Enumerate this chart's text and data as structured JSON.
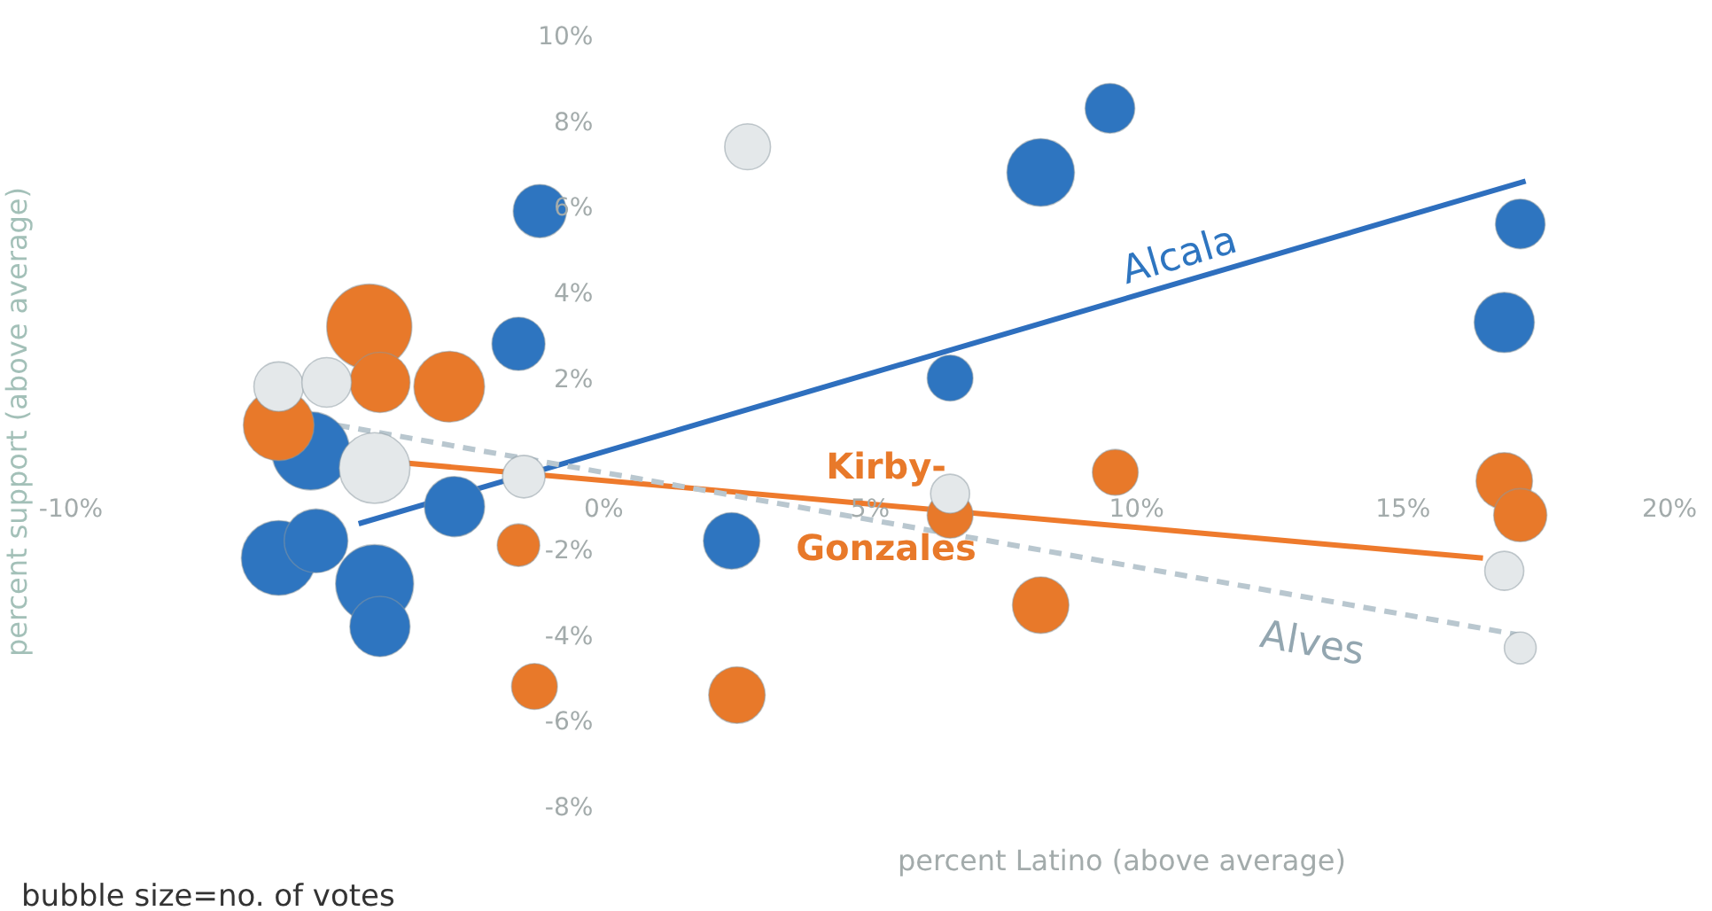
{
  "chart_data": {
    "type": "bubble",
    "xlabel": "percent Latino (above average)",
    "ylabel": "percent support (above average)",
    "xlim": [
      -10,
      20
    ],
    "xticks": [
      {
        "value": -10,
        "label": "-10%"
      },
      {
        "value": 0,
        "label": "0%"
      },
      {
        "value": 5,
        "label": "5%"
      },
      {
        "value": 10,
        "label": "10%"
      },
      {
        "value": 15,
        "label": "15%"
      },
      {
        "value": 20,
        "label": "20%"
      }
    ],
    "ylim": [
      -8,
      10
    ],
    "yticks": [
      {
        "value": -8,
        "label": "-8%"
      },
      {
        "value": -6,
        "label": "-6%"
      },
      {
        "value": -4,
        "label": "-4%"
      },
      {
        "value": -2,
        "label": "-2%"
      },
      {
        "value": 2,
        "label": "2%"
      },
      {
        "value": 4,
        "label": "4%"
      },
      {
        "value": 6,
        "label": "6%"
      },
      {
        "value": 8,
        "label": "8%"
      },
      {
        "value": 10,
        "label": "10%"
      }
    ],
    "grid": false,
    "legend": false,
    "marker": "circle",
    "series": [
      {
        "type": "bubble",
        "color": "#2e75c0",
        "x": [
          9.5,
          8.2,
          -1.2,
          -1.6,
          6.5,
          17.2,
          16.9,
          -5.5,
          -2.8,
          -6.1,
          -5.4,
          -4.3,
          -4.2,
          2.4
        ],
        "values": [
          8.3,
          6.8,
          5.9,
          2.8,
          2.0,
          5.6,
          3.3,
          0.3,
          -1.0,
          -2.2,
          -1.8,
          -2.8,
          -3.8,
          -1.8
        ],
        "sizes": [
          0.34,
          0.63,
          0.39,
          0.39,
          0.29,
          0.34,
          0.5,
          0.84,
          0.5,
          0.77,
          0.56,
          0.84,
          0.5,
          0.44
        ]
      },
      {
        "type": "bubble",
        "color": "#e8792a",
        "x": [
          -4.4,
          -2.9,
          -4.2,
          -6.1,
          -1.6,
          9.6,
          6.5,
          8.2,
          -1.3,
          2.5,
          16.9,
          17.2
        ],
        "values": [
          3.2,
          1.8,
          1.9,
          0.9,
          -1.9,
          -0.2,
          -1.2,
          -3.3,
          -5.2,
          -5.4,
          -0.4,
          -1.2
        ],
        "sizes": [
          1,
          0.69,
          0.5,
          0.69,
          0.25,
          0.29,
          0.29,
          0.44,
          0.29,
          0.44,
          0.44,
          0.39
        ]
      },
      {
        "type": "bubble",
        "color": "#e4e8ea",
        "x": [
          2.7,
          -6.1,
          -5.2,
          -4.3,
          -1.5,
          6.5,
          16.9,
          17.2
        ],
        "values": [
          7.4,
          1.8,
          1.9,
          -0.1,
          -0.3,
          -0.7,
          -2.5,
          -4.3
        ],
        "sizes": [
          0.29,
          0.34,
          0.34,
          0.69,
          0.25,
          0.21,
          0.21,
          0.14
        ]
      },
      {
        "type": "line",
        "color": "#2e6fbe",
        "x": [
          -4.6,
          17.3
        ],
        "values": [
          -1.4,
          6.6
        ],
        "line_style": "solid",
        "marker": "none"
      },
      {
        "type": "line",
        "color": "#ee7a2c",
        "x": [
          -6.3,
          16.5
        ],
        "values": [
          0.3,
          -2.2
        ],
        "line_style": "solid",
        "marker": "none"
      },
      {
        "type": "line",
        "color": "#b9c7cf",
        "x": [
          -5.0,
          17.2
        ],
        "values": [
          0.9,
          -4.0
        ],
        "line_style": "dashed",
        "marker": "none"
      }
    ],
    "annotations": [
      {
        "text": "Alcala",
        "x": 10.8,
        "y": 4.2
      },
      {
        "text": "Kirby-\nGonzales",
        "x": 5.3,
        "y": -1.0
      },
      {
        "text": "Alves",
        "x": 13.3,
        "y": -3.2
      },
      "bubble size=no. of votes"
    ]
  }
}
